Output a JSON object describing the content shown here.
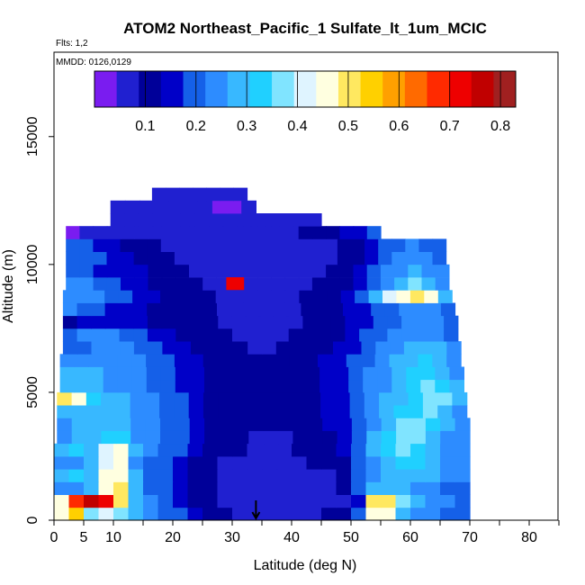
{
  "chart_data": {
    "type": "heatmap",
    "title": "ATOM2 Northeast_Pacific_1 Sulfate_lt_1um_MCIC",
    "flights_label": "Flts: 1,2",
    "dates_label": "MMDD: 0126,0129",
    "xlabel": "Latitude (deg N)",
    "ylabel": "Altitude (m)",
    "xlim": [
      0,
      85
    ],
    "ylim": [
      0,
      17500
    ],
    "x_ticks": [
      0,
      5,
      10,
      20,
      30,
      40,
      50,
      60,
      70,
      80
    ],
    "x_tick_labels": [
      "0",
      "5",
      "10",
      "20",
      "30",
      "40",
      "50",
      "60",
      "70",
      "80"
    ],
    "x_minor_ticks": [
      15,
      25,
      35,
      45,
      55,
      65,
      75,
      85
    ],
    "y_ticks": [
      0,
      5000,
      10000,
      15000
    ],
    "y_tick_labels": [
      "0",
      "5000",
      "10000",
      "15000"
    ],
    "colorbar": {
      "range": [
        0,
        0.83
      ],
      "ticks": [
        0.1,
        0.2,
        0.3,
        0.4,
        0.5,
        0.6,
        0.7,
        0.8
      ],
      "tick_labels": [
        "0.1",
        "0.2",
        "0.3",
        "0.4",
        "0.5",
        "0.6",
        "0.7",
        "0.8"
      ],
      "colors": [
        "#7a1cf0",
        "#2020d0",
        "#000099",
        "#0000c8",
        "#1560e8",
        "#2d8cff",
        "#38b8ff",
        "#20d0ff",
        "#80e4ff",
        "#dff4ff",
        "#ffffe0",
        "#ffe860",
        "#ffd000",
        "#ffa000",
        "#ff6a00",
        "#ff2a00",
        "#ee0000",
        "#c00000",
        "#a02020"
      ]
    },
    "marker_latitude": 34,
    "cross_section": {
      "lat_bins": [
        0,
        2.5,
        5,
        7.5,
        10,
        12.5,
        15,
        17.5,
        20,
        22.5,
        25,
        27.5,
        30,
        32.5,
        35,
        37.5,
        40,
        42.5,
        45,
        47.5,
        50,
        52.5,
        55,
        57.5,
        60,
        62.5,
        65,
        67.5,
        70
      ],
      "alt_layers": [
        {
          "alt": [
            0,
            500
          ],
          "lat_range": [
            0,
            70
          ],
          "values": [
            0.48,
            0.55,
            0.35,
            0.42,
            0.35,
            0.3,
            0.25,
            0.2,
            0.18,
            0.15,
            0.12,
            0.1,
            0.08,
            0.06,
            0.06,
            0.06,
            0.07,
            0.08,
            0.09,
            0.12,
            0.2,
            0.45,
            0.45,
            0.3,
            0.25,
            0.22,
            0.2,
            0.18
          ]
        },
        {
          "alt": [
            500,
            1000
          ],
          "lat_range": [
            0,
            70
          ],
          "values": [
            0.48,
            0.66,
            0.75,
            0.72,
            0.5,
            0.3,
            0.25,
            0.2,
            0.15,
            0.12,
            0.1,
            0.08,
            0.06,
            0.05,
            0.05,
            0.05,
            0.05,
            0.05,
            0.06,
            0.08,
            0.15,
            0.5,
            0.5,
            0.35,
            0.3,
            0.25,
            0.22,
            0.2
          ]
        },
        {
          "alt": [
            1000,
            1500
          ],
          "lat_range": [
            0,
            70
          ],
          "values": [
            0.22,
            0.25,
            0.3,
            0.45,
            0.5,
            0.3,
            0.2,
            0.2,
            0.15,
            0.12,
            0.1,
            0.08,
            0.06,
            0.05,
            0.05,
            0.05,
            0.05,
            0.06,
            0.08,
            0.12,
            0.2,
            0.3,
            0.3,
            0.28,
            0.25,
            0.22,
            0.2,
            0.18
          ]
        },
        {
          "alt": [
            1500,
            2000
          ],
          "lat_range": [
            0,
            70
          ],
          "values": [
            0.3,
            0.32,
            0.28,
            0.45,
            0.45,
            0.28,
            0.2,
            0.18,
            0.15,
            0.12,
            0.1,
            0.08,
            0.07,
            0.06,
            0.06,
            0.06,
            0.06,
            0.07,
            0.08,
            0.12,
            0.18,
            0.25,
            0.28,
            0.3,
            0.3,
            0.28,
            0.25,
            0.22
          ]
        },
        {
          "alt": [
            2000,
            2500
          ],
          "lat_range": [
            0,
            70
          ],
          "values": [
            0.22,
            0.25,
            0.28,
            0.4,
            0.45,
            0.25,
            0.2,
            0.18,
            0.15,
            0.13,
            0.1,
            0.08,
            0.08,
            0.07,
            0.07,
            0.07,
            0.08,
            0.09,
            0.1,
            0.12,
            0.18,
            0.25,
            0.3,
            0.33,
            0.32,
            0.28,
            0.24,
            0.22
          ]
        },
        {
          "alt": [
            2500,
            3000
          ],
          "lat_range": [
            0,
            70
          ],
          "values": [
            0.3,
            0.32,
            0.3,
            0.42,
            0.45,
            0.28,
            0.22,
            0.2,
            0.18,
            0.15,
            0.12,
            0.1,
            0.09,
            0.08,
            0.08,
            0.08,
            0.09,
            0.1,
            0.12,
            0.15,
            0.2,
            0.28,
            0.32,
            0.35,
            0.33,
            0.3,
            0.26,
            0.24
          ]
        },
        {
          "alt": [
            3000,
            3500
          ],
          "lat_range": [
            0.5,
            70
          ],
          "values": [
            0.25,
            0.27,
            0.3,
            0.32,
            0.33,
            0.25,
            0.22,
            0.2,
            0.18,
            0.15,
            0.12,
            0.1,
            0.09,
            0.08,
            0.08,
            0.08,
            0.09,
            0.1,
            0.12,
            0.15,
            0.2,
            0.28,
            0.33,
            0.38,
            0.36,
            0.3,
            0.26,
            0.24
          ]
        },
        {
          "alt": [
            3500,
            4000
          ],
          "lat_range": [
            0.5,
            70
          ],
          "values": [
            0.26,
            0.28,
            0.3,
            0.3,
            0.3,
            0.25,
            0.22,
            0.2,
            0.18,
            0.15,
            0.12,
            0.1,
            0.1,
            0.09,
            0.09,
            0.09,
            0.1,
            0.12,
            0.14,
            0.16,
            0.2,
            0.25,
            0.3,
            0.35,
            0.36,
            0.32,
            0.28,
            0.25
          ]
        },
        {
          "alt": [
            4000,
            4500
          ],
          "lat_range": [
            0.5,
            69.5
          ],
          "values": [
            0.3,
            0.3,
            0.28,
            0.28,
            0.27,
            0.25,
            0.22,
            0.2,
            0.18,
            0.15,
            0.12,
            0.11,
            0.1,
            0.09,
            0.09,
            0.1,
            0.11,
            0.12,
            0.14,
            0.16,
            0.2,
            0.24,
            0.28,
            0.32,
            0.34,
            0.35,
            0.3,
            0.26
          ]
        },
        {
          "alt": [
            4500,
            5000
          ],
          "lat_range": [
            0.5,
            69.5
          ],
          "values": [
            0.5,
            0.45,
            0.32,
            0.3,
            0.28,
            0.26,
            0.22,
            0.2,
            0.18,
            0.15,
            0.13,
            0.11,
            0.1,
            0.09,
            0.09,
            0.1,
            0.11,
            0.12,
            0.14,
            0.16,
            0.2,
            0.24,
            0.28,
            0.3,
            0.32,
            0.35,
            0.36,
            0.3
          ]
        },
        {
          "alt": [
            5000,
            5500
          ],
          "lat_range": [
            1,
            69
          ],
          "values": [
            0.28,
            0.28,
            0.27,
            0.26,
            0.25,
            0.23,
            0.2,
            0.18,
            0.16,
            0.14,
            0.12,
            0.11,
            0.1,
            0.09,
            0.09,
            0.1,
            0.11,
            0.12,
            0.14,
            0.16,
            0.18,
            0.22,
            0.26,
            0.3,
            0.32,
            0.35,
            0.32,
            0.28
          ]
        },
        {
          "alt": [
            5500,
            6000
          ],
          "lat_range": [
            1,
            69
          ],
          "values": [
            0.3,
            0.3,
            0.28,
            0.26,
            0.25,
            0.22,
            0.2,
            0.18,
            0.16,
            0.15,
            0.13,
            0.12,
            0.11,
            0.1,
            0.1,
            0.1,
            0.11,
            0.12,
            0.14,
            0.16,
            0.18,
            0.22,
            0.26,
            0.3,
            0.32,
            0.34,
            0.3,
            0.26
          ]
        },
        {
          "alt": [
            6000,
            6500
          ],
          "lat_range": [
            1,
            68.5
          ],
          "values": [
            0.25,
            0.25,
            0.25,
            0.24,
            0.23,
            0.22,
            0.2,
            0.18,
            0.16,
            0.14,
            0.12,
            0.11,
            0.1,
            0.09,
            0.09,
            0.1,
            0.11,
            0.12,
            0.14,
            0.15,
            0.18,
            0.2,
            0.24,
            0.28,
            0.3,
            0.32,
            0.3,
            0.26
          ]
        },
        {
          "alt": [
            6500,
            7000
          ],
          "lat_range": [
            1.5,
            68.5
          ],
          "values": [
            0.18,
            0.2,
            0.22,
            0.23,
            0.22,
            0.2,
            0.18,
            0.16,
            0.14,
            0.12,
            0.11,
            0.1,
            0.09,
            0.08,
            0.08,
            0.09,
            0.1,
            0.11,
            0.12,
            0.14,
            0.16,
            0.2,
            0.22,
            0.25,
            0.28,
            0.3,
            0.28,
            0.24
          ]
        },
        {
          "alt": [
            7000,
            7500
          ],
          "lat_range": [
            1.5,
            68
          ],
          "values": [
            0.2,
            0.22,
            0.23,
            0.22,
            0.2,
            0.18,
            0.16,
            0.14,
            0.12,
            0.11,
            0.1,
            0.09,
            0.08,
            0.08,
            0.08,
            0.08,
            0.09,
            0.1,
            0.11,
            0.13,
            0.15,
            0.18,
            0.2,
            0.22,
            0.24,
            0.26,
            0.24,
            0.2
          ]
        },
        {
          "alt": [
            7500,
            8000
          ],
          "lat_range": [
            1.5,
            68
          ],
          "values": [
            0.12,
            0.14,
            0.15,
            0.16,
            0.15,
            0.14,
            0.13,
            0.12,
            0.11,
            0.1,
            0.09,
            0.08,
            0.08,
            0.07,
            0.07,
            0.08,
            0.08,
            0.09,
            0.1,
            0.12,
            0.14,
            0.16,
            0.18,
            0.2,
            0.22,
            0.24,
            0.22,
            0.18
          ]
        },
        {
          "alt": [
            8000,
            8500
          ],
          "lat_range": [
            1.5,
            67.5
          ],
          "values": [
            0.22,
            0.2,
            0.18,
            0.16,
            0.15,
            0.14,
            0.13,
            0.12,
            0.11,
            0.1,
            0.09,
            0.08,
            0.08,
            0.07,
            0.07,
            0.07,
            0.08,
            0.09,
            0.1,
            0.12,
            0.14,
            0.16,
            0.18,
            0.2,
            0.22,
            0.25,
            0.22,
            0.18
          ]
        },
        {
          "alt": [
            8500,
            9000
          ],
          "lat_range": [
            1.5,
            67
          ],
          "values": [
            0.25,
            0.24,
            0.22,
            0.2,
            0.18,
            0.16,
            0.14,
            0.12,
            0.11,
            0.1,
            0.09,
            0.08,
            0.07,
            0.07,
            0.07,
            0.07,
            0.08,
            0.09,
            0.1,
            0.12,
            0.15,
            0.2,
            0.3,
            0.4,
            0.48,
            0.52,
            0.45,
            0.3
          ]
        },
        {
          "alt": [
            9000,
            9500
          ],
          "lat_range": [
            2,
            66.5
          ],
          "values": [
            0.22,
            0.22,
            0.2,
            0.18,
            0.16,
            0.15,
            0.13,
            0.12,
            0.1,
            0.09,
            0.08,
            0.07,
            0.07,
            0.06,
            0.06,
            0.06,
            0.07,
            0.08,
            0.09,
            0.1,
            0.12,
            0.16,
            0.2,
            0.25,
            0.3,
            0.35,
            0.3,
            0.24
          ]
        },
        {
          "alt": [
            9500,
            10000
          ],
          "lat_range": [
            2,
            66.5
          ],
          "values": [
            0.18,
            0.18,
            0.17,
            0.16,
            0.15,
            0.14,
            0.12,
            0.1,
            0.09,
            0.08,
            0.07,
            0.06,
            0.06,
            0.05,
            0.05,
            0.05,
            0.06,
            0.07,
            0.08,
            0.1,
            0.12,
            0.15,
            0.18,
            0.22,
            0.25,
            0.28,
            0.26,
            0.22
          ]
        },
        {
          "alt": [
            10000,
            10500
          ],
          "lat_range": [
            2,
            66
          ],
          "values": [
            0.2,
            0.2,
            0.18,
            0.16,
            0.14,
            0.12,
            0.1,
            0.09,
            0.08,
            0.07,
            0.06,
            0.05,
            0.05,
            0.05,
            0.05,
            0.05,
            0.05,
            0.06,
            0.07,
            0.08,
            0.1,
            0.13,
            0.16,
            0.2,
            0.24,
            0.26,
            0.24,
            0.2
          ]
        },
        {
          "alt": [
            10500,
            11000
          ],
          "lat_range": [
            2,
            66
          ],
          "values": [
            0.2,
            0.18,
            0.16,
            0.14,
            0.12,
            0.1,
            0.09,
            0.08,
            0.07,
            0.06,
            0.05,
            0.05,
            0.05,
            0.05,
            0.05,
            0.05,
            0.05,
            0.06,
            0.07,
            0.08,
            0.1,
            0.12,
            0.15,
            0.18,
            0.2,
            0.22,
            0.2,
            0.18
          ]
        },
        {
          "alt": [
            11000,
            11500
          ],
          "lat_range": [
            2,
            55
          ],
          "values": [
            0.04,
            0.05,
            0.06,
            0.07,
            0.08,
            0.08,
            0.07,
            0.06,
            0.05,
            0.05,
            0.05,
            0.05,
            0.05,
            0.05,
            0.06,
            0.07,
            0.08,
            0.09,
            0.1,
            0.12,
            0.14,
            0.16,
            0.18
          ]
        },
        {
          "alt": [
            11500,
            12000
          ],
          "lat_range": [
            9.5,
            45
          ],
          "values": [
            0.05,
            0.05,
            0.06,
            0.07,
            0.08,
            0.08,
            0.07,
            0.06,
            0.05,
            0.05,
            0.05,
            0.05,
            0.05,
            0.06,
            0.07
          ]
        },
        {
          "alt": [
            12000,
            12500
          ],
          "lat_range": [
            9.5,
            34
          ],
          "values": [
            0.05,
            0.06,
            0.07,
            0.08,
            0.08,
            0.07,
            0.05,
            0.04,
            0.04,
            0.05
          ]
        },
        {
          "alt": [
            12500,
            13000
          ],
          "lat_range": [
            16.5,
            32.5
          ],
          "values": [
            0.06,
            0.06,
            0.07,
            0.06,
            0.05,
            0.05,
            0.06
          ]
        }
      ],
      "hotspot": {
        "lat": [
          29,
          32
        ],
        "alt": [
          9000,
          9500
        ],
        "value": 0.72
      }
    }
  }
}
